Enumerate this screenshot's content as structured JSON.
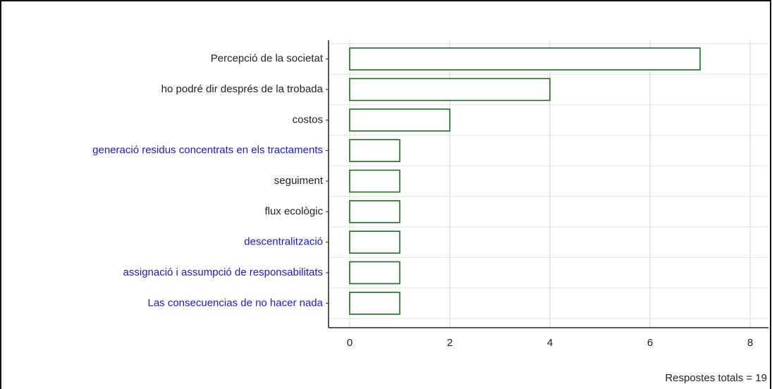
{
  "chart_data": {
    "type": "barh",
    "categories": [
      "Percepció de la societat",
      "ho podré dir després de la trobada",
      "costos",
      "generació residus concentrats en els tractaments",
      "seguiment",
      "flux ecològic",
      "descentralització",
      "assignació i assumpció de responsabilitats",
      "Las consecuencias de no hacer nada"
    ],
    "values": [
      7,
      4,
      2,
      1,
      1,
      1,
      1,
      1,
      1
    ],
    "label_colors": [
      "#222222",
      "#222222",
      "#222222",
      "#1a1acc",
      "#222222",
      "#222222",
      "#1a1acc",
      "#1a1acc",
      "#1a1acc"
    ],
    "color": "#1e6b1e",
    "xlim": [
      0,
      8
    ],
    "xticks": [
      0,
      2,
      4,
      6,
      8
    ],
    "grid": true,
    "footer": "Respostes totals = 19"
  }
}
